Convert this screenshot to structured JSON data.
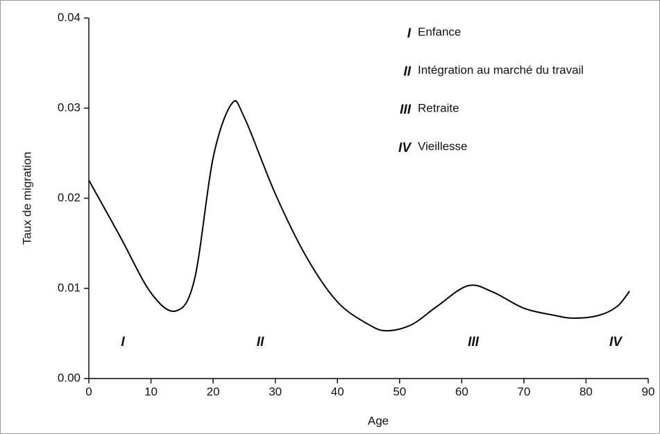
{
  "chart_data": {
    "type": "line",
    "xlabel": "Age",
    "ylabel": "Taux de migration",
    "x": [
      0,
      5,
      10,
      14,
      17,
      20,
      23,
      25,
      30,
      35,
      40,
      45,
      48,
      52,
      56,
      61,
      65,
      70,
      75,
      78,
      82,
      85,
      87
    ],
    "series": [
      {
        "color": "#000000",
        "values": [
          0.022,
          0.0158,
          0.0095,
          0.0075,
          0.011,
          0.0245,
          0.0305,
          0.029,
          0.0205,
          0.0135,
          0.0085,
          0.006,
          0.0053,
          0.006,
          0.008,
          0.0103,
          0.0096,
          0.0078,
          0.007,
          0.0067,
          0.007,
          0.008,
          0.0097
        ]
      }
    ],
    "xlim": [
      0,
      90
    ],
    "xticks": [
      0,
      10,
      20,
      30,
      40,
      50,
      60,
      70,
      80,
      90
    ],
    "ylim": [
      0,
      0.04
    ],
    "yticks": [
      {
        "value": 0,
        "label": "0.00"
      },
      {
        "value": 0.01,
        "label": "0.01"
      },
      {
        "value": 0.02,
        "label": "0.02"
      },
      {
        "value": 0.03,
        "label": "0.03"
      },
      {
        "value": 0.04,
        "label": "0.04"
      }
    ],
    "region_labels": [
      "I",
      "II",
      "III",
      "IV"
    ],
    "legend": [
      {
        "numeral": "I",
        "label": "Enfance"
      },
      {
        "numeral": "II",
        "label": "Intégration au marché du travail"
      },
      {
        "numeral": "III",
        "label": "Retraite"
      },
      {
        "numeral": "IV",
        "label": "Vieillesse"
      }
    ]
  }
}
